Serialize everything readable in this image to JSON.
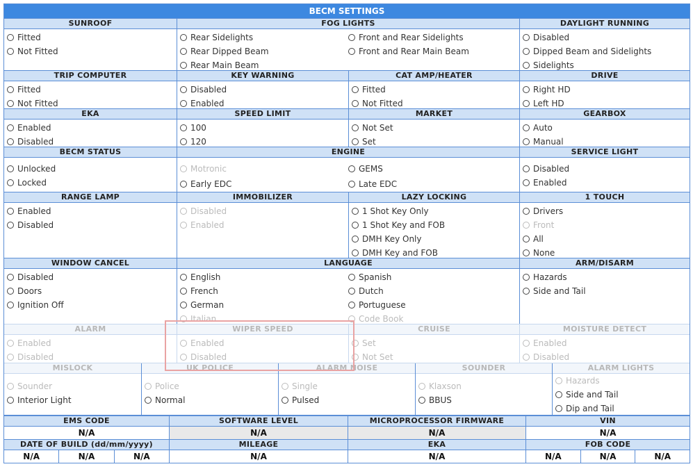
{
  "title": "BECM SETTINGS",
  "sections": {
    "sunroof": {
      "label": "SUNROOF",
      "opts": [
        "Fitted",
        "Not Fitted"
      ]
    },
    "fog": {
      "label": "FOG LIGHTS",
      "left": [
        "Rear Sidelights",
        "Rear Dipped Beam",
        "Rear Main Beam"
      ],
      "right": [
        "Front and Rear Sidelights",
        "Front and Rear Main Beam"
      ]
    },
    "daylight": {
      "label": "DAYLIGHT RUNNING",
      "opts": [
        "Disabled",
        "Dipped Beam and Sidelights",
        "Sidelights"
      ]
    },
    "trip": {
      "label": "TRIP COMPUTER",
      "opts": [
        "Fitted",
        "Not Fitted"
      ]
    },
    "key": {
      "label": "KEY WARNING",
      "opts": [
        "Disabled",
        "Enabled"
      ]
    },
    "cat": {
      "label": "CAT AMP/HEATER",
      "opts": [
        "Fitted",
        "Not Fitted"
      ]
    },
    "drive": {
      "label": "DRIVE",
      "opts": [
        "Right HD",
        "Left HD"
      ]
    },
    "eka": {
      "label": "EKA",
      "opts": [
        "Enabled",
        "Disabled"
      ]
    },
    "speed": {
      "label": "SPEED LIMIT",
      "opts": [
        "100",
        "120"
      ]
    },
    "market": {
      "label": "MARKET",
      "opts": [
        "Not Set",
        "Set"
      ]
    },
    "gearbox": {
      "label": "GEARBOX",
      "opts": [
        "Auto",
        "Manual"
      ]
    },
    "status": {
      "label": "BECM STATUS",
      "opts": [
        "Unlocked",
        "Locked"
      ]
    },
    "engine": {
      "label": "ENGINE",
      "left": [
        "Motronic",
        "Early EDC"
      ],
      "right": [
        "GEMS",
        "Late EDC"
      ]
    },
    "service": {
      "label": "SERVICE LIGHT",
      "opts": [
        "Disabled",
        "Enabled"
      ]
    },
    "range": {
      "label": "RANGE LAMP",
      "opts": [
        "Enabled",
        "Disabled"
      ]
    },
    "immob": {
      "label": "IMMOBILIZER",
      "opts": [
        "Disabled",
        "Enabled"
      ]
    },
    "lazy": {
      "label": "LAZY LOCKING",
      "opts": [
        "1 Shot Key Only",
        "1 Shot Key and FOB",
        "DMH Key Only",
        "DMH Key and FOB"
      ]
    },
    "touch": {
      "label": "1 TOUCH",
      "opts": [
        "Drivers",
        "Front",
        "All",
        "None"
      ]
    },
    "window": {
      "label": "WINDOW CANCEL",
      "opts": [
        "Disabled",
        "Doors",
        "Ignition Off"
      ]
    },
    "language": {
      "label": "LANGUAGE",
      "left": [
        "English",
        "French",
        "German",
        "Italian"
      ],
      "right": [
        "Spanish",
        "Dutch",
        "Portuguese",
        "Code Book"
      ]
    },
    "arm": {
      "label": "ARM/DISARM",
      "opts": [
        "Hazards",
        "Side and Tail"
      ]
    },
    "alarm": {
      "label": "ALARM",
      "opts": [
        "Enabled",
        "Disabled"
      ]
    },
    "wiper": {
      "label": "WIPER SPEED",
      "opts": [
        "Enabled",
        "Disabled"
      ]
    },
    "cruise": {
      "label": "CRUISE",
      "opts": [
        "Set",
        "Not Set"
      ]
    },
    "moisture": {
      "label": "MOISTURE DETECT",
      "opts": [
        "Enabled",
        "Disabled"
      ]
    },
    "mislock": {
      "label": "MISLOCK",
      "opts": [
        "Sounder",
        "Interior Light"
      ]
    },
    "ukpolice": {
      "label": "UK POLICE",
      "opts": [
        "Police",
        "Normal"
      ]
    },
    "alarmnoise": {
      "label": "ALARM NOISE",
      "opts": [
        "Single",
        "Pulsed"
      ]
    },
    "sounder": {
      "label": "SOUNDER",
      "opts": [
        "Klaxson",
        "BBUS"
      ]
    },
    "alarmlights": {
      "label": "ALARM LIGHTS",
      "opts": [
        "Hazards",
        "Side and Tail",
        "Dip and Tail"
      ]
    }
  },
  "info": {
    "ems_label": "EMS CODE",
    "ems_val": "N/A",
    "sw_label": "SOFTWARE LEVEL",
    "sw_val": "N/A",
    "micro_label": "MICROPROCESSOR FIRMWARE",
    "micro_val": "N/A",
    "vin_label": "VIN",
    "vin_val": "N/A",
    "date_label": "DATE OF BUILD (dd/mm/yyyy)",
    "date_vals": [
      "N/A",
      "N/A",
      "N/A"
    ],
    "mileage_label": "MILEAGE",
    "mileage_val": "N/A",
    "eka_label": "EKA",
    "eka_val": "N/A",
    "fob_label": "FOB CODE",
    "fob_vals": [
      "N/A",
      "N/A",
      "N/A"
    ]
  }
}
